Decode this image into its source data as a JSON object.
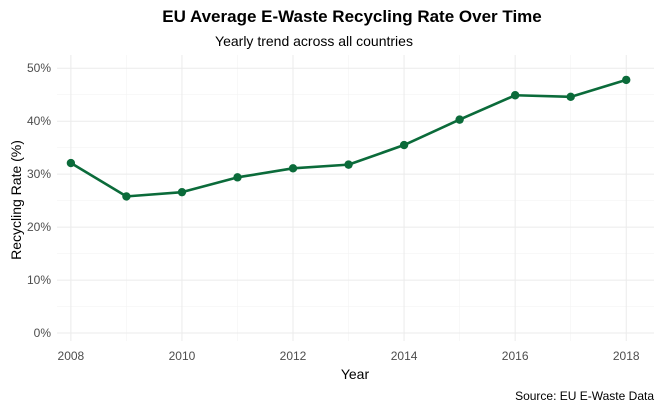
{
  "chart_data": {
    "type": "line",
    "title": "EU Average E-Waste Recycling Rate Over Time",
    "subtitle": "Yearly trend across all countries",
    "xlabel": "Year",
    "ylabel": "Recycling Rate (%)",
    "caption": "Source: EU E-Waste Data",
    "x": [
      2008,
      2009,
      2010,
      2011,
      2012,
      2013,
      2014,
      2015,
      2016,
      2017,
      2018
    ],
    "series": [
      {
        "values": [
          32.1,
          25.8,
          26.6,
          29.4,
          31.1,
          31.8,
          35.5,
          40.3,
          44.9,
          44.6,
          47.8
        ]
      }
    ],
    "xlim": [
      2007.75,
      2018.5
    ],
    "ylim": [
      -1.5,
      52.5
    ],
    "x_ticks": [
      2008,
      2010,
      2012,
      2014,
      2016,
      2018
    ],
    "x_tick_labels": [
      "2008",
      "2010",
      "2012",
      "2014",
      "2016",
      "2018"
    ],
    "y_ticks": [
      0,
      10,
      20,
      30,
      40,
      50
    ],
    "y_tick_labels": [
      "0%",
      "10%",
      "20%",
      "30%",
      "40%",
      "50%"
    ],
    "grid": true,
    "line_color": "#0b6b3a",
    "background": "#ffffff"
  }
}
